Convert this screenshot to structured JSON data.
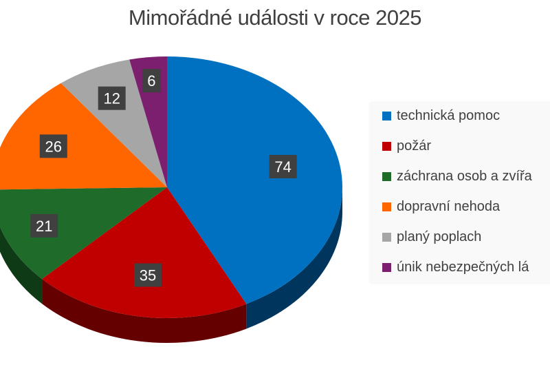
{
  "chart_data": {
    "type": "pie",
    "title": "Mimořádné události v roce 2025",
    "categories": [
      "technická pomoc",
      "požár",
      "záchrana osob a zvířa",
      "dopravní nehoda",
      "planý poplach",
      "únik nebezpečných lá"
    ],
    "values": [
      74,
      35,
      21,
      26,
      12,
      6
    ],
    "colors": [
      "#0070c0",
      "#c00000",
      "#1e6b2a",
      "#ff6600",
      "#a6a6a6",
      "#7b1f6e"
    ],
    "side_colors": [
      "#00365e",
      "#650000",
      "#0e3a16",
      "#8a3800",
      "#5e5e5e",
      "#40103a"
    ],
    "legend_position": "right",
    "data_labels": true
  }
}
